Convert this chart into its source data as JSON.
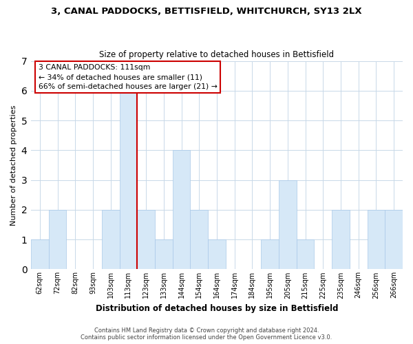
{
  "title": "3, CANAL PADDOCKS, BETTISFIELD, WHITCHURCH, SY13 2LX",
  "subtitle": "Size of property relative to detached houses in Bettisfield",
  "xlabel": "Distribution of detached houses by size in Bettisfield",
  "ylabel": "Number of detached properties",
  "bin_labels": [
    "62sqm",
    "72sqm",
    "82sqm",
    "93sqm",
    "103sqm",
    "113sqm",
    "123sqm",
    "133sqm",
    "144sqm",
    "154sqm",
    "164sqm",
    "174sqm",
    "184sqm",
    "195sqm",
    "205sqm",
    "215sqm",
    "225sqm",
    "235sqm",
    "246sqm",
    "256sqm",
    "266sqm"
  ],
  "bar_heights": [
    1,
    2,
    0,
    0,
    2,
    6,
    2,
    1,
    4,
    2,
    1,
    0,
    0,
    1,
    3,
    1,
    0,
    2,
    0,
    2,
    2
  ],
  "bar_color": "#d6e8f7",
  "bar_edge_color": "#a8c8e8",
  "highlight_bar_index": 5,
  "highlight_color": "#cc0000",
  "ylim": [
    0,
    7
  ],
  "yticks": [
    0,
    1,
    2,
    3,
    4,
    5,
    6,
    7
  ],
  "annotation_line1": "3 CANAL PADDOCKS: 111sqm",
  "annotation_line2": "← 34% of detached houses are smaller (11)",
  "annotation_line3": "66% of semi-detached houses are larger (21) →",
  "footer_line1": "Contains HM Land Registry data © Crown copyright and database right 2024.",
  "footer_line2": "Contains public sector information licensed under the Open Government Licence v3.0.",
  "background_color": "#ffffff",
  "grid_color": "#c8d8e8"
}
